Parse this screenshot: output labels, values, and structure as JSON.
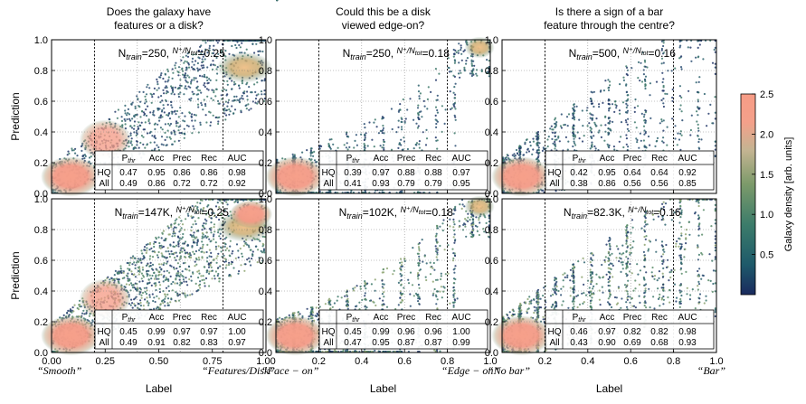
{
  "figure": {
    "xlabel": "Label",
    "ylabel": "Prediction",
    "colorbar": {
      "label": "Galaxy density [arb. units]",
      "ticks": [
        "0.5",
        "1.0",
        "1.5",
        "2.0",
        "2.5"
      ],
      "range": [
        0.0,
        2.5
      ],
      "colors": [
        "#1a2a5e",
        "#1e5a6a",
        "#3c7c6a",
        "#7c9a6a",
        "#c4b492",
        "#f4a08a",
        "#f79c86"
      ]
    },
    "table_headers": [
      "P_thr",
      "Acc",
      "Prec",
      "Rec",
      "AUC"
    ],
    "row_labels": [
      "HQ",
      "All"
    ],
    "y_ticks": [
      "0.0",
      "0.2",
      "0.4",
      "0.6",
      "0.8",
      "1.0"
    ],
    "x_ticks_left": [
      "0.00",
      "0.25",
      "0.50",
      "0.75",
      "1.00"
    ],
    "x_ticks_other": [
      "0.2",
      "0.4",
      "0.6",
      "0.8",
      "1.0"
    ],
    "grid": "dotted",
    "threshold_lines_x": [
      0.2,
      0.8
    ]
  },
  "chart_data": [
    {
      "type": "scatter",
      "title": [
        "Does the galaxy have",
        "features or a disk?"
      ],
      "x_end_labels": [
        "“Smooth”",
        "“Features/Disk”"
      ],
      "xlim": [
        0,
        1
      ],
      "ylim": [
        0,
        1
      ],
      "panels": [
        {
          "n_train": "250",
          "ratio": "0.25",
          "table": [
            [
              "0.47",
              "0.95",
              "0.86",
              "0.86",
              "0.98"
            ],
            [
              "0.49",
              "0.86",
              "0.72",
              "0.72",
              "0.92"
            ]
          ]
        },
        {
          "n_train": "147K",
          "ratio": "0.25",
          "table": [
            [
              "0.45",
              "0.99",
              "0.97",
              "0.97",
              "1.00"
            ],
            [
              "0.49",
              "0.91",
              "0.82",
              "0.83",
              "0.97"
            ]
          ]
        }
      ]
    },
    {
      "type": "scatter",
      "title": [
        "Could this be a disk",
        "viewed edge-on?"
      ],
      "x_end_labels": [
        "“Face − on”",
        "“Edge − on”"
      ],
      "xlim": [
        0,
        1
      ],
      "ylim": [
        0,
        1
      ],
      "panels": [
        {
          "n_train": "250",
          "ratio": "0.18",
          "table": [
            [
              "0.39",
              "0.97",
              "0.88",
              "0.88",
              "0.97"
            ],
            [
              "0.41",
              "0.93",
              "0.79",
              "0.79",
              "0.95"
            ]
          ]
        },
        {
          "n_train": "102K",
          "ratio": "0.18",
          "table": [
            [
              "0.45",
              "0.99",
              "0.96",
              "0.96",
              "1.00"
            ],
            [
              "0.47",
              "0.95",
              "0.87",
              "0.87",
              "0.99"
            ]
          ]
        }
      ]
    },
    {
      "type": "scatter",
      "title": [
        "Is there a sign of a bar",
        "feature through the centre?"
      ],
      "x_end_labels": [
        "“No bar”",
        "“Bar”"
      ],
      "xlim": [
        0,
        1
      ],
      "ylim": [
        0,
        1
      ],
      "panels": [
        {
          "n_train": "500",
          "ratio": "0.16",
          "table": [
            [
              "0.42",
              "0.95",
              "0.64",
              "0.64",
              "0.92"
            ],
            [
              "0.38",
              "0.86",
              "0.56",
              "0.56",
              "0.85"
            ]
          ]
        },
        {
          "n_train": "82.3K",
          "ratio": "0.16",
          "table": [
            [
              "0.46",
              "0.97",
              "0.82",
              "0.82",
              "0.98"
            ],
            [
              "0.43",
              "0.90",
              "0.69",
              "0.68",
              "0.93"
            ]
          ]
        }
      ]
    }
  ]
}
